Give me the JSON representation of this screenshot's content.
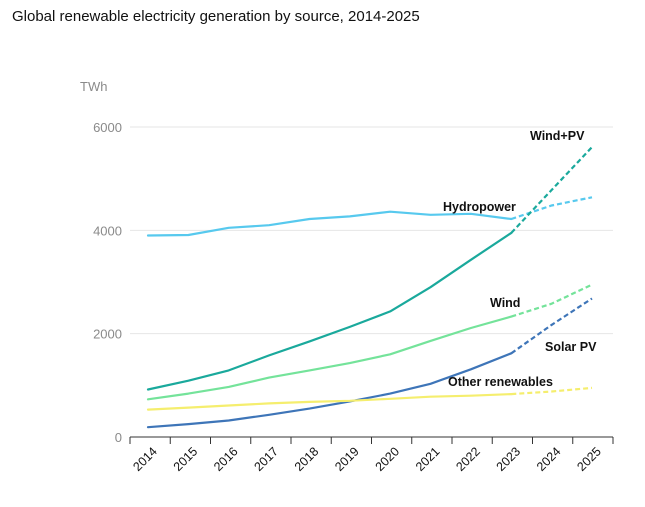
{
  "chart_data": {
    "type": "line",
    "title": "Global renewable electricity generation by source, 2014-2025",
    "ylabel": "TWh",
    "xlabel": "",
    "x": [
      2014,
      2015,
      2016,
      2017,
      2018,
      2019,
      2020,
      2021,
      2022,
      2023,
      2024,
      2025
    ],
    "x_tick_labels": [
      "2014",
      "2015",
      "2016",
      "2017",
      "2018",
      "2019",
      "2020",
      "2021",
      "2022",
      "2023",
      "2024",
      "2025"
    ],
    "ylim": [
      0,
      6000
    ],
    "yticks": [
      0,
      2000,
      4000,
      6000
    ],
    "ytick_labels": [
      "0",
      "2000",
      "4000",
      "6000"
    ],
    "grid": true,
    "forecast_from": 2023,
    "series": [
      {
        "name": "Hydropower",
        "color": "#57c9ee",
        "values": [
          3900,
          3910,
          4050,
          4100,
          4220,
          4270,
          4360,
          4300,
          4320,
          4220,
          4480,
          4640
        ]
      },
      {
        "name": "Wind+PV",
        "color": "#1aa99c",
        "values": [
          920,
          1090,
          1290,
          1580,
          1850,
          2130,
          2430,
          2900,
          3430,
          3950,
          4780,
          5610
        ]
      },
      {
        "name": "Wind",
        "color": "#74e39a",
        "values": [
          730,
          840,
          970,
          1150,
          1290,
          1430,
          1600,
          1860,
          2110,
          2330,
          2580,
          2950
        ]
      },
      {
        "name": "Solar PV",
        "color": "#3e75b8",
        "values": [
          190,
          250,
          320,
          430,
          550,
          690,
          840,
          1030,
          1310,
          1620,
          2170,
          2680
        ]
      },
      {
        "name": "Other renewables",
        "color": "#f5ee6e",
        "values": [
          530,
          570,
          610,
          650,
          680,
          700,
          740,
          780,
          800,
          830,
          880,
          950
        ]
      }
    ]
  }
}
